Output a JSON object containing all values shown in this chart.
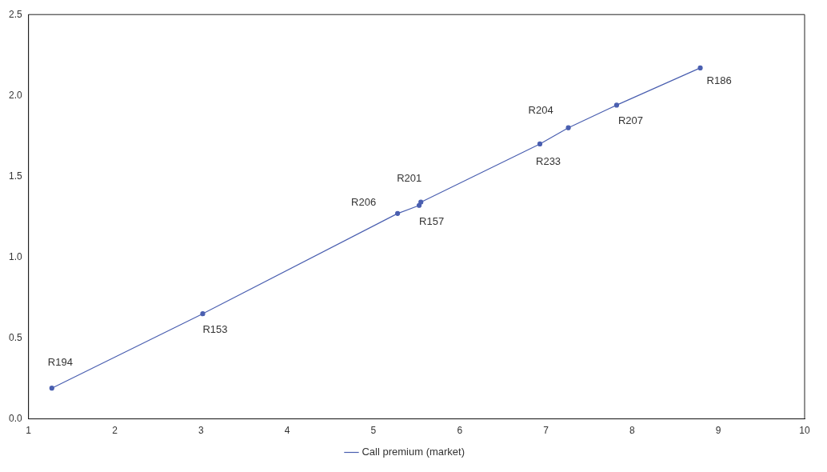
{
  "chart_data": {
    "type": "line",
    "x": [
      1.27,
      3.02,
      5.28,
      5.53,
      5.55,
      6.93,
      7.26,
      7.82,
      8.79
    ],
    "series": [
      {
        "name": "Call premium (market)",
        "color": "#4a5fb0",
        "values": [
          0.19,
          0.65,
          1.27,
          1.32,
          1.34,
          1.7,
          1.8,
          1.94,
          2.17
        ]
      }
    ],
    "xlim": [
      1,
      10
    ],
    "xticks": [
      1,
      2,
      3,
      4,
      5,
      6,
      7,
      8,
      9,
      10
    ],
    "ylim": [
      0,
      2.5
    ],
    "yticks": [
      {
        "value": 0,
        "label": "0.0"
      },
      0.5,
      {
        "value": 1,
        "label": "1.0"
      },
      1.5,
      {
        "value": 2,
        "label": "2.0"
      },
      2.5
    ],
    "marker": "circle",
    "line_style": "solid",
    "grid": false,
    "legend": "bottom",
    "annotations": [
      {
        "text": "R194",
        "x": 1.27,
        "y": 0.19
      },
      {
        "text": "R153",
        "x": 3.02,
        "y": 0.65
      },
      {
        "text": "R206",
        "x": 5.28,
        "y": 1.27
      },
      {
        "text": "R157",
        "x": 5.53,
        "y": 1.32
      },
      {
        "text": "R201",
        "x": 5.55,
        "y": 1.34
      },
      {
        "text": "R233",
        "x": 6.93,
        "y": 1.7
      },
      {
        "text": "R204",
        "x": 7.26,
        "y": 1.8
      },
      {
        "text": "R207",
        "x": 7.82,
        "y": 1.94
      },
      {
        "text": "R186",
        "x": 8.79,
        "y": 2.17
      }
    ]
  }
}
